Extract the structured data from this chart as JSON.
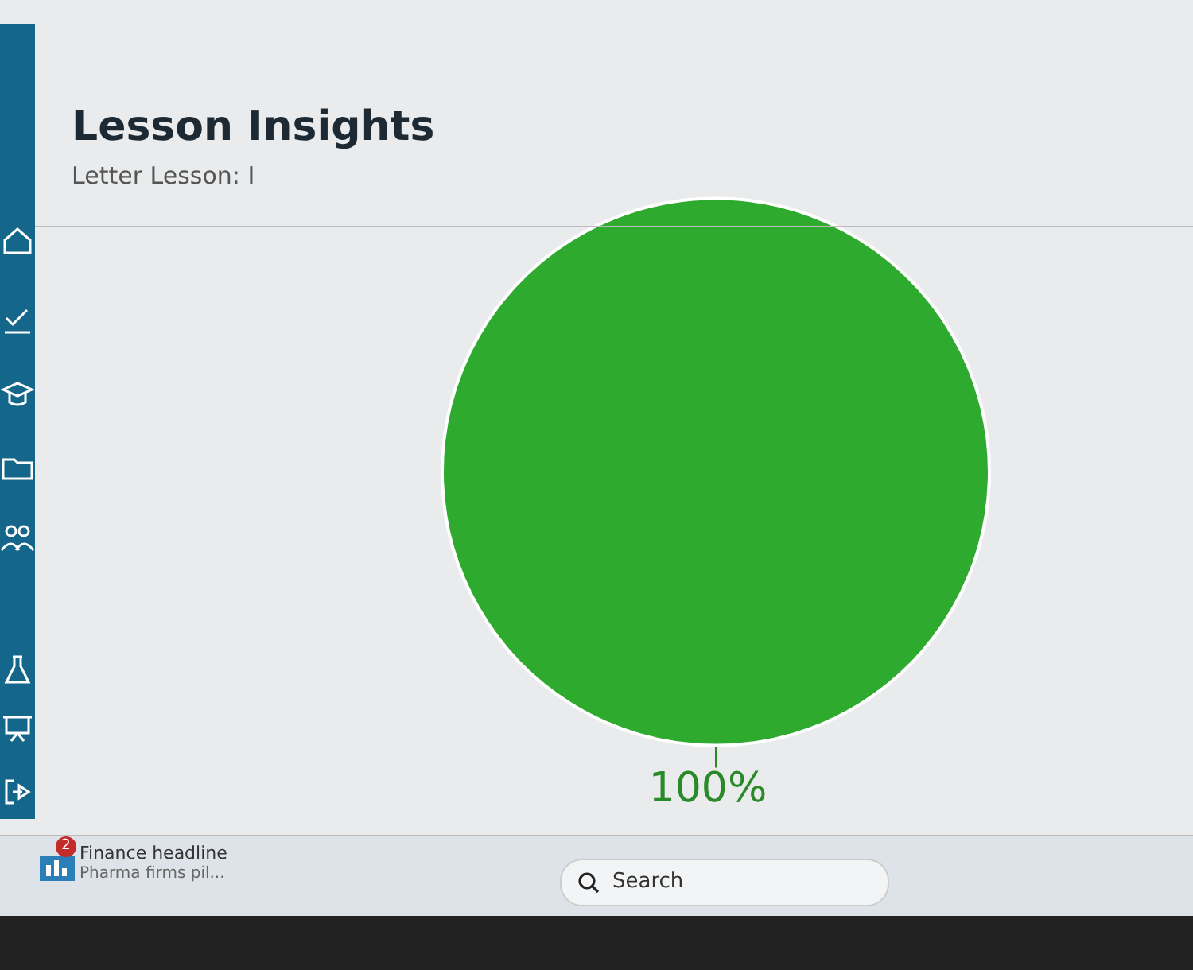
{
  "chart_data": {
    "type": "pie",
    "title": "Lesson Insights",
    "subtitle": "Letter Lesson: I",
    "categories": [
      null
    ],
    "values": [
      100
    ],
    "colors": [
      "#2eaa2e"
    ],
    "value_labels": [
      "100%"
    ],
    "annotations": [
      "2",
      "Finance headline",
      "Pharma firms pil...",
      "Search"
    ]
  }
}
